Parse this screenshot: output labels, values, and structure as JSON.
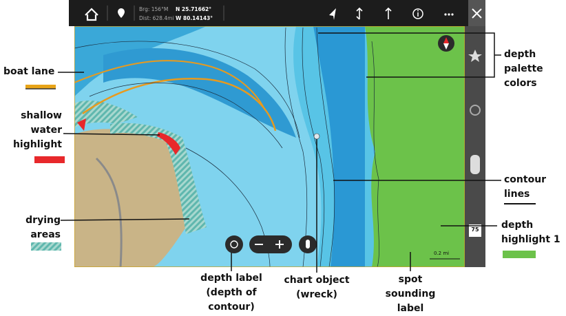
{
  "toolbar": {
    "bearing": "Brg: 156°M",
    "latitude": "N 25.71662°",
    "distance": "Dist: 628.4mi",
    "longitude": "W 80.14143°"
  },
  "map": {
    "scale": "0.2 mi",
    "speed_badge": "75"
  },
  "callouts": [
    {
      "lines": [
        "boat lane"
      ]
    },
    {
      "lines": [
        "shallow",
        "water",
        "highlight"
      ]
    },
    {
      "lines": [
        "drying",
        "areas"
      ]
    },
    {
      "lines": [
        "depth label",
        "(depth of",
        "contour)"
      ]
    },
    {
      "lines": [
        "chart object",
        "(wreck)"
      ]
    },
    {
      "lines": [
        "spot",
        "sounding",
        "label"
      ]
    },
    {
      "lines": [
        "depth",
        "palette",
        "colors"
      ]
    },
    {
      "lines": [
        "contour",
        "lines"
      ]
    },
    {
      "lines": [
        "depth",
        "highlight 1"
      ]
    }
  ]
}
